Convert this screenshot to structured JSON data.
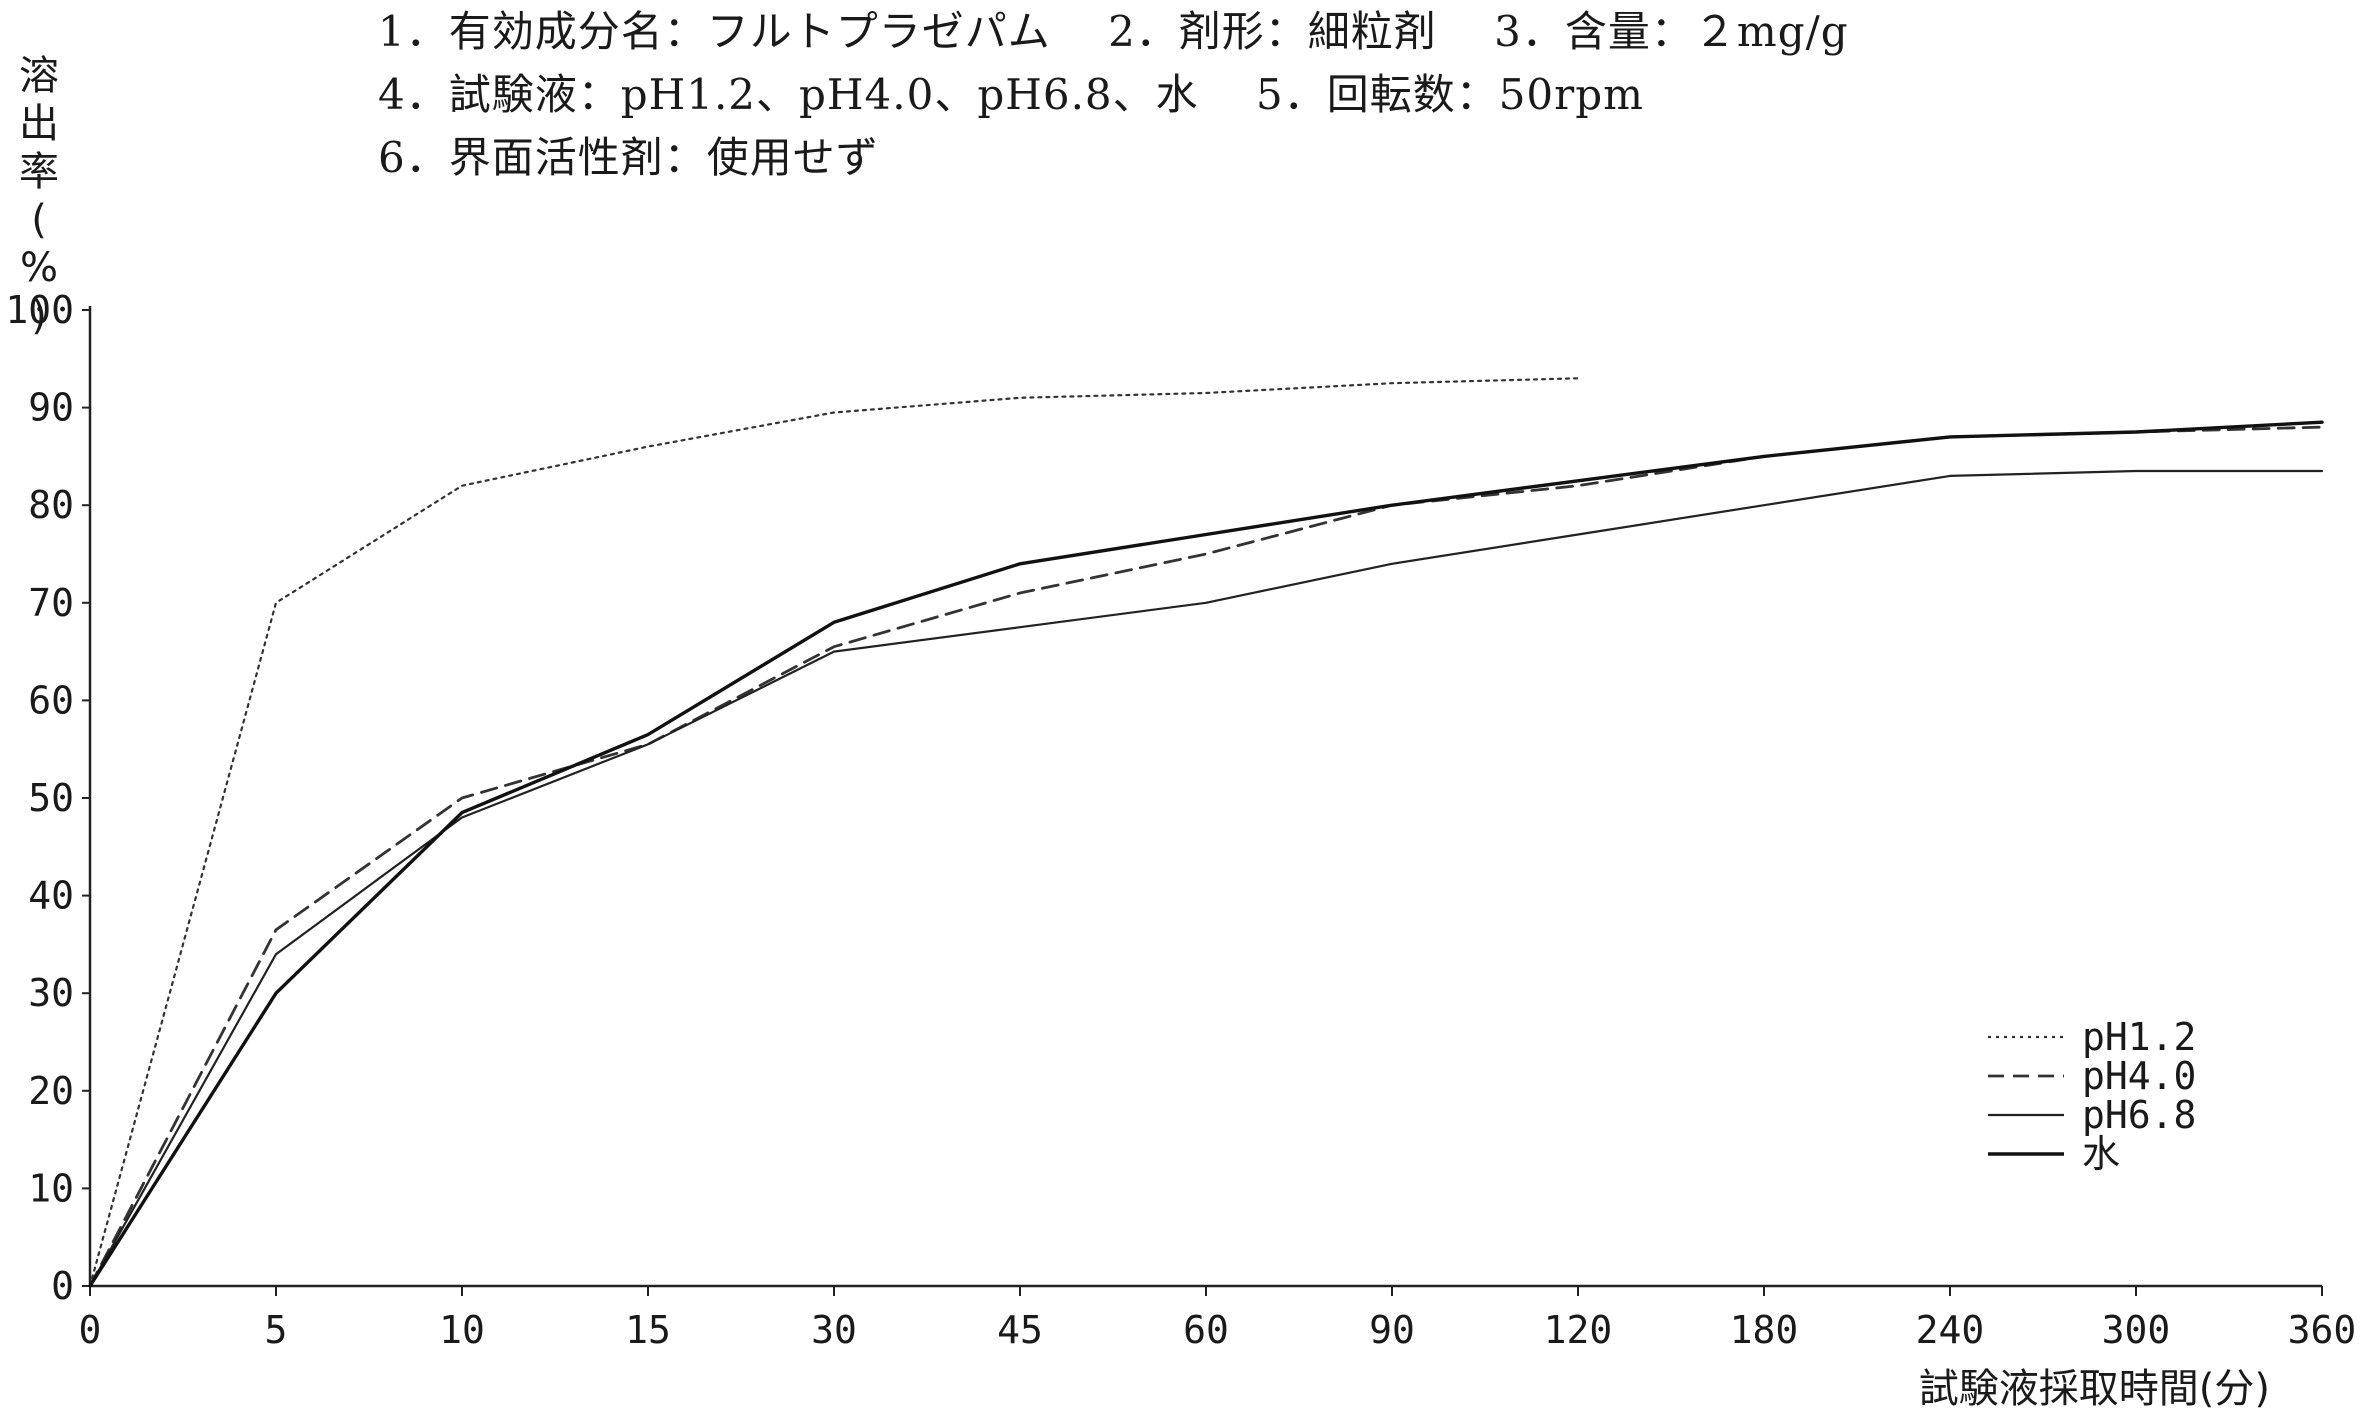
{
  "header_notes": [
    "1．有効成分名：フルトプラゼパム　 2．剤形：細粒剤　 3．含量：２mg/g",
    "4．試験液：pH1.2、pH4.0、pH6.8、水　 5．回転数：50rpm",
    "6．界面活性剤：使用せず"
  ],
  "chart_data": {
    "type": "line",
    "title": "",
    "ylabel": "溶出率(%)",
    "xlabel": "試験液採取時間(分)",
    "categories": [
      "0",
      "5",
      "10",
      "15",
      "30",
      "45",
      "60",
      "90",
      "120",
      "180",
      "240",
      "300",
      "360"
    ],
    "x_scale": "categorical, evenly spaced tick positions",
    "ylim": [
      0,
      100
    ],
    "yticks": [
      "0",
      "10",
      "20",
      "30",
      "40",
      "50",
      "60",
      "70",
      "80",
      "90",
      "100"
    ],
    "grid": false,
    "legend_position": "bottom-right",
    "series": [
      {
        "name": "pH1.2",
        "style": "dotted",
        "color": "#333333",
        "values": [
          0,
          70,
          82,
          86,
          89.5,
          91,
          91.5,
          92.5,
          93,
          null,
          null,
          null,
          null
        ]
      },
      {
        "name": "pH4.0",
        "style": "dashed",
        "color": "#333333",
        "values": [
          0,
          36.5,
          50,
          55.5,
          65.5,
          71,
          75,
          80,
          82,
          85,
          87,
          87.5,
          88
        ]
      },
      {
        "name": "pH6.8",
        "style": "thin-solid",
        "color": "#222222",
        "values": [
          0,
          34,
          48,
          55.5,
          65,
          67.5,
          70,
          74,
          77,
          80,
          83,
          83.5,
          83.5
        ]
      },
      {
        "name": "水",
        "style": "thick-solid",
        "color": "#111111",
        "values": [
          0,
          30,
          48.5,
          56.5,
          68,
          74,
          77,
          80,
          82.5,
          85,
          87,
          87.5,
          88.5
        ]
      }
    ]
  }
}
